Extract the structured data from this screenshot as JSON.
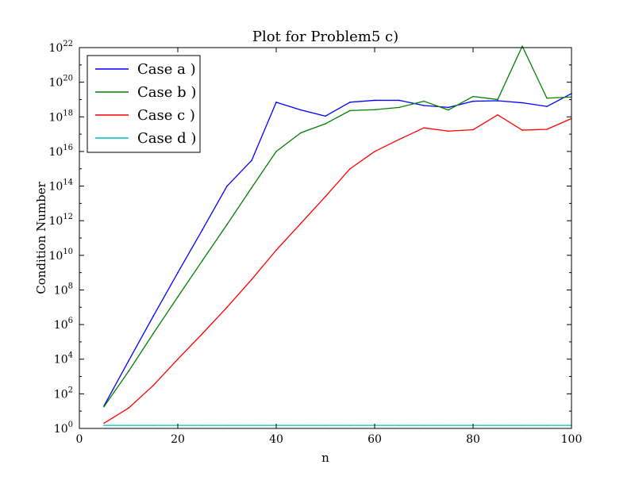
{
  "chart_data": {
    "type": "line",
    "title": "Plot for Problem5 c)",
    "xlabel": "n",
    "ylabel": "Condition Number",
    "xlim": [
      0,
      100
    ],
    "ylim": [
      1,
      1e+22
    ],
    "yscale": "log",
    "xticks": [
      "0",
      "20",
      "40",
      "60",
      "80",
      "100"
    ],
    "yticks": [
      {
        "base": "10",
        "exp": "0"
      },
      {
        "base": "10",
        "exp": "2"
      },
      {
        "base": "10",
        "exp": "4"
      },
      {
        "base": "10",
        "exp": "6"
      },
      {
        "base": "10",
        "exp": "8"
      },
      {
        "base": "10",
        "exp": "10"
      },
      {
        "base": "10",
        "exp": "12"
      },
      {
        "base": "10",
        "exp": "14"
      },
      {
        "base": "10",
        "exp": "16"
      },
      {
        "base": "10",
        "exp": "18"
      },
      {
        "base": "10",
        "exp": "20"
      },
      {
        "base": "10",
        "exp": "22"
      }
    ],
    "grid": false,
    "legend_position": "top-left",
    "x": [
      5,
      10,
      15,
      20,
      25,
      30,
      35,
      40,
      45,
      50,
      55,
      60,
      65,
      70,
      75,
      80,
      85,
      90,
      95,
      100
    ],
    "series": [
      {
        "name": "Case a )",
        "color": "#0000ff",
        "values": [
          20,
          8000,
          3000000.0,
          1000000000.0,
          300000000000.0,
          100000000000000.0,
          3000000000000000.0,
          7e+18,
          2.5e+18,
          1.1e+18,
          7e+18,
          9e+18,
          9e+18,
          4.5e+18,
          3.5e+18,
          8e+18,
          8.5e+18,
          6.5e+18,
          4e+18,
          2.2e+19
        ]
      },
      {
        "name": "Case b )",
        "color": "#008000",
        "values": [
          18,
          2000,
          300000.0,
          40000000.0,
          5000000000.0,
          600000000000.0,
          80000000000000.0,
          1e+16,
          1.2e+17,
          4e+17,
          2.3e+18,
          2.6e+18,
          3.5e+18,
          8e+18,
          2.5e+18,
          1.5e+19,
          1e+19,
          1.2e+22,
          1.2e+19,
          1.4e+19
        ]
      },
      {
        "name": "Case c )",
        "color": "#ff0000",
        "values": [
          2,
          15,
          300,
          10000.0,
          300000.0,
          10000000.0,
          400000000.0,
          20000000000.0,
          700000000000.0,
          25000000000000.0,
          1000000000000000.0,
          1e+16,
          5e+16,
          2.3e+17,
          1.5e+17,
          1.8e+17,
          1.3e+18,
          1.7e+17,
          1.9e+17,
          8e+17
        ]
      },
      {
        "name": "Case d )",
        "color": "#00bfbf",
        "values": [
          1.5,
          1.5,
          1.5,
          1.5,
          1.5,
          1.5,
          1.5,
          1.5,
          1.5,
          1.5,
          1.5,
          1.5,
          1.5,
          1.5,
          1.5,
          1.5,
          1.5,
          1.5,
          1.5,
          1.5
        ]
      }
    ]
  }
}
